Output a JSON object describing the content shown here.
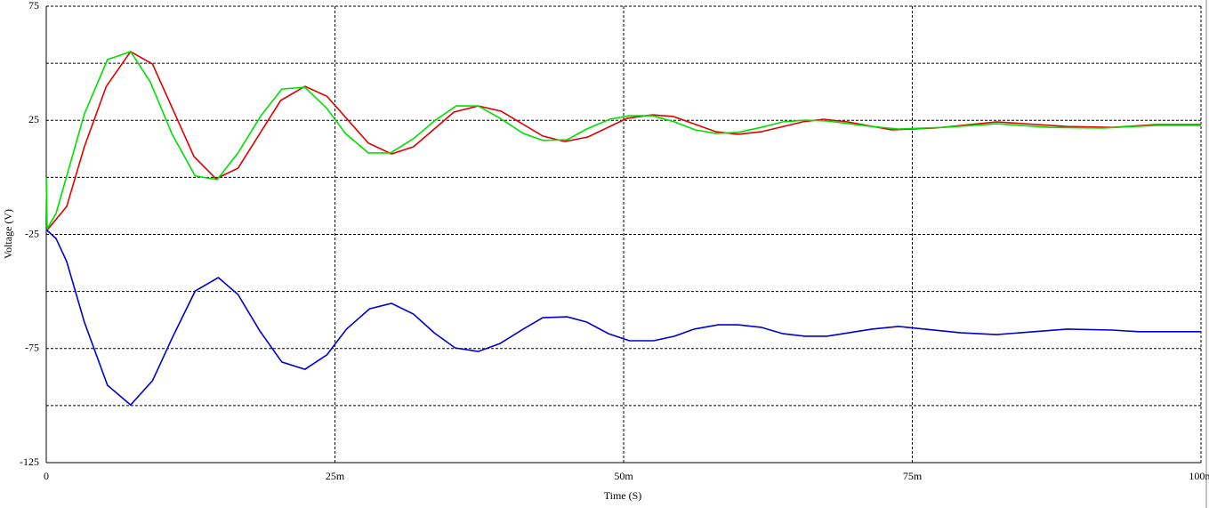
{
  "chart_data": {
    "type": "line",
    "xlabel": "Time (S)",
    "ylabel": "Voltage (V)",
    "xlim": [
      0,
      0.1
    ],
    "xticks": [
      0,
      {
        "value": 0.025,
        "label": "25m"
      },
      {
        "value": 0.05,
        "label": "50m"
      },
      {
        "value": 0.075,
        "label": "75m"
      },
      {
        "value": 0.1,
        "label": "100m"
      }
    ],
    "ylim": [
      -125,
      75
    ],
    "yticks": [
      75,
      25,
      -25,
      -75,
      -125
    ],
    "minor_yticks": [
      50,
      0,
      -50,
      -100
    ],
    "grid": true,
    "series": [
      {
        "color": "#e00000",
        "x": [
          0,
          0.00177,
          0.0033,
          0.0052,
          0.0073,
          0.0092,
          0.0128,
          0.0147,
          0.0166,
          0.0203,
          0.0224,
          0.0243,
          0.0279,
          0.0299,
          0.0318,
          0.0353,
          0.0374,
          0.0394,
          0.043,
          0.0449,
          0.0469,
          0.0503,
          0.0525,
          0.0543,
          0.058,
          0.0599,
          0.0619,
          0.0655,
          0.0673,
          0.0694,
          0.0732,
          0.0769,
          0.0823,
          0.0884,
          0.0923,
          0.0961,
          0.1
        ],
        "values": [
          -23.6,
          -12.7,
          13.4,
          39.9,
          55.1,
          49.7,
          9.1,
          -0.6,
          4.0,
          33.7,
          39.9,
          35.6,
          15.0,
          10.3,
          13.4,
          28.6,
          31.3,
          29.0,
          18.1,
          15.7,
          17.7,
          25.9,
          27.4,
          26.7,
          20.0,
          18.9,
          20.0,
          24.3,
          25.5,
          24.3,
          20.8,
          21.6,
          24.3,
          22.3,
          21.9,
          23.1,
          23.1
        ]
      },
      {
        "color": "#00e000",
        "x": [
          0,
          8e-05,
          0.00085,
          0.0033,
          0.0053,
          0.0073,
          0.009,
          0.0109,
          0.0129,
          0.0148,
          0.0166,
          0.0186,
          0.0204,
          0.0224,
          0.0243,
          0.0259,
          0.0279,
          0.0298,
          0.0318,
          0.0337,
          0.0355,
          0.0374,
          0.0393,
          0.0413,
          0.043,
          0.0451,
          0.0468,
          0.0488,
          0.0505,
          0.0525,
          0.0544,
          0.0562,
          0.058,
          0.0599,
          0.0619,
          0.0638,
          0.0657,
          0.0676,
          0.0715,
          0.0738,
          0.0777,
          0.0823,
          0.0869,
          0.0915,
          0.0961,
          0.1
        ],
        "values": [
          0,
          -22.5,
          -15.8,
          27.8,
          51.6,
          55.1,
          41.9,
          18.9,
          0.6,
          -1.0,
          10.7,
          27.1,
          38.7,
          39.5,
          30.2,
          19.3,
          10.7,
          10.7,
          17.0,
          25.1,
          31.3,
          31.3,
          25.9,
          19.3,
          16.2,
          16.5,
          21.2,
          25.5,
          27.0,
          27.0,
          24.3,
          20.8,
          19.3,
          19.7,
          21.9,
          24.3,
          25.1,
          24.7,
          22.3,
          21.2,
          21.9,
          23.5,
          21.9,
          21.6,
          22.8,
          22.8
        ]
      },
      {
        "color": "#0000d0",
        "x": [
          0,
          0.00085,
          0.00177,
          0.0033,
          0.0053,
          0.0073,
          0.0092,
          0.0109,
          0.0129,
          0.0149,
          0.0166,
          0.0185,
          0.0204,
          0.0224,
          0.0243,
          0.026,
          0.028,
          0.0299,
          0.0318,
          0.0336,
          0.0354,
          0.0374,
          0.0393,
          0.0413,
          0.043,
          0.0451,
          0.0468,
          0.0487,
          0.0505,
          0.0526,
          0.0544,
          0.0561,
          0.0582,
          0.0599,
          0.0619,
          0.0638,
          0.0657,
          0.0676,
          0.0715,
          0.0738,
          0.0792,
          0.0823,
          0.0884,
          0.0923,
          0.0946,
          0.1
        ],
        "values": [
          -22.9,
          -26.8,
          -36.9,
          -63.4,
          -91.1,
          -99.7,
          -89.1,
          -70.4,
          -49.8,
          -43.9,
          -51.3,
          -67.3,
          -80.9,
          -84.1,
          -77.8,
          -66.5,
          -57.6,
          -55.2,
          -59.9,
          -68.1,
          -74.7,
          -76.3,
          -72.8,
          -66.5,
          -61.5,
          -61.1,
          -63.4,
          -68.5,
          -71.6,
          -71.6,
          -69.6,
          -66.5,
          -64.6,
          -64.6,
          -65.7,
          -68.5,
          -69.6,
          -69.6,
          -66.5,
          -65.3,
          -68.1,
          -68.9,
          -66.5,
          -66.9,
          -67.6,
          -67.6
        ]
      }
    ]
  }
}
